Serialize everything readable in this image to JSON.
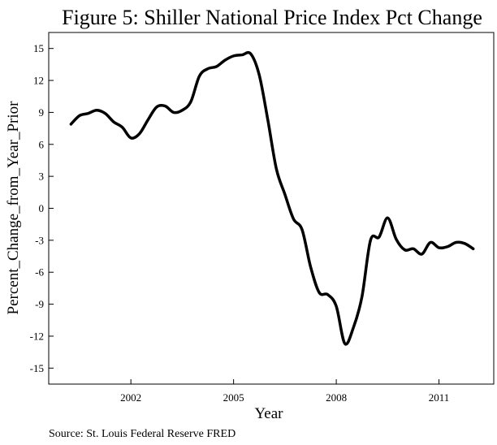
{
  "chart_data": {
    "type": "line",
    "title": "Figure 5: Shiller National Price Index Pct Change",
    "xlabel": "Year",
    "ylabel": "Percent_Change_from_Year_Prior",
    "source": "Source: St. Louis Federal Reserve FRED",
    "xlim": [
      1999.6,
      2012.6
    ],
    "ylim": [
      -16.5,
      16.5
    ],
    "x_ticks": [
      2002,
      2005,
      2008,
      2011
    ],
    "x_tick_labels": [
      "2002",
      "2005",
      "2008",
      "2011"
    ],
    "y_ticks": [
      15,
      12,
      9,
      6,
      3,
      0,
      -3,
      -6,
      -9,
      -12,
      -15
    ],
    "y_tick_labels": [
      "15",
      "12",
      "9",
      "6",
      "3",
      "0",
      "-3",
      "-6",
      "-9",
      "-12",
      "-15"
    ],
    "grid": false,
    "legend": "none",
    "line_color": "#000000",
    "series": [
      {
        "x": [
          2000.25,
          2000.5,
          2000.75,
          2001.0,
          2001.25,
          2001.5,
          2001.75,
          2002.0,
          2002.25,
          2002.5,
          2002.75,
          2003.0,
          2003.25,
          2003.5,
          2003.75,
          2004.0,
          2004.25,
          2004.5,
          2004.75,
          2005.0,
          2005.25,
          2005.5,
          2005.75,
          2006.0,
          2006.25,
          2006.5,
          2006.75,
          2007.0,
          2007.25,
          2007.5,
          2007.75,
          2008.0,
          2008.25,
          2008.5,
          2008.75,
          2009.0,
          2009.25,
          2009.5,
          2009.75,
          2010.0,
          2010.25,
          2010.5,
          2010.75,
          2011.0,
          2011.25,
          2011.5,
          2011.75,
          2012.0
        ],
        "values": [
          7.9,
          8.7,
          8.9,
          9.2,
          8.9,
          8.1,
          7.6,
          6.6,
          7.0,
          8.3,
          9.5,
          9.6,
          9.0,
          9.2,
          10.0,
          12.4,
          13.1,
          13.3,
          13.9,
          14.3,
          14.4,
          14.5,
          12.5,
          8.3,
          3.7,
          1.3,
          -1.0,
          -2.0,
          -5.5,
          -7.9,
          -8.1,
          -9.2,
          -12.7,
          -11.2,
          -8.3,
          -3.0,
          -2.7,
          -0.9,
          -2.9,
          -3.9,
          -3.8,
          -4.3,
          -3.2,
          -3.7,
          -3.6,
          -3.2,
          -3.3,
          -3.8
        ]
      }
    ]
  }
}
